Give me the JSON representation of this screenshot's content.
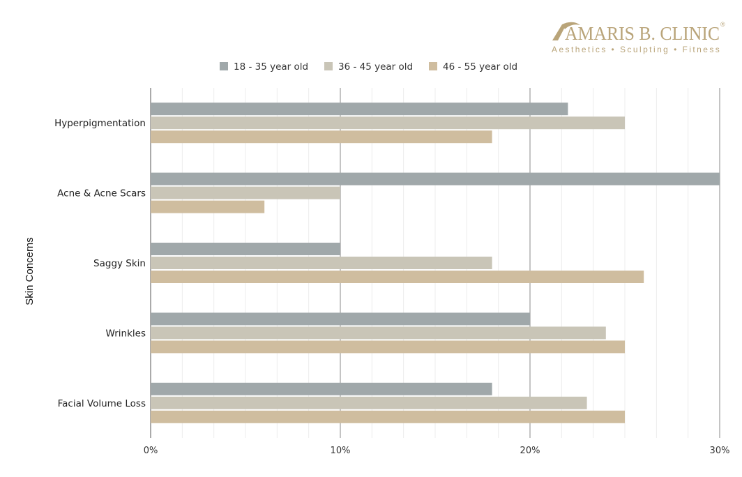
{
  "brand": {
    "name": "AMARIS B. CLINIC",
    "tagline": "Aesthetics • Sculpting • Fitness",
    "registered_mark": "®",
    "color": "#b9a479"
  },
  "chart_data": {
    "type": "bar",
    "orientation": "horizontal",
    "ylabel": "Skin Concerns",
    "xlabel": "",
    "xlim": [
      0,
      30
    ],
    "x_ticks": [
      "0%",
      "10%",
      "20%",
      "30%"
    ],
    "categories": [
      "Hyperpigmentation",
      "Acne & Acne Scars",
      "Saggy Skin",
      "Wrinkles",
      "Facial Volume Loss"
    ],
    "series": [
      {
        "name": "18 - 35 year old",
        "color": "#a0a8aa",
        "values": [
          22,
          30,
          10,
          20,
          18
        ]
      },
      {
        "name": "36 - 45 year old",
        "color": "#c9c5b7",
        "values": [
          25,
          10,
          18,
          24,
          23
        ]
      },
      {
        "name": "46 - 55 year old",
        "color": "#cfbd9f",
        "values": [
          18,
          6,
          26,
          25,
          25
        ]
      }
    ],
    "legend_position": "top",
    "grid": true
  }
}
